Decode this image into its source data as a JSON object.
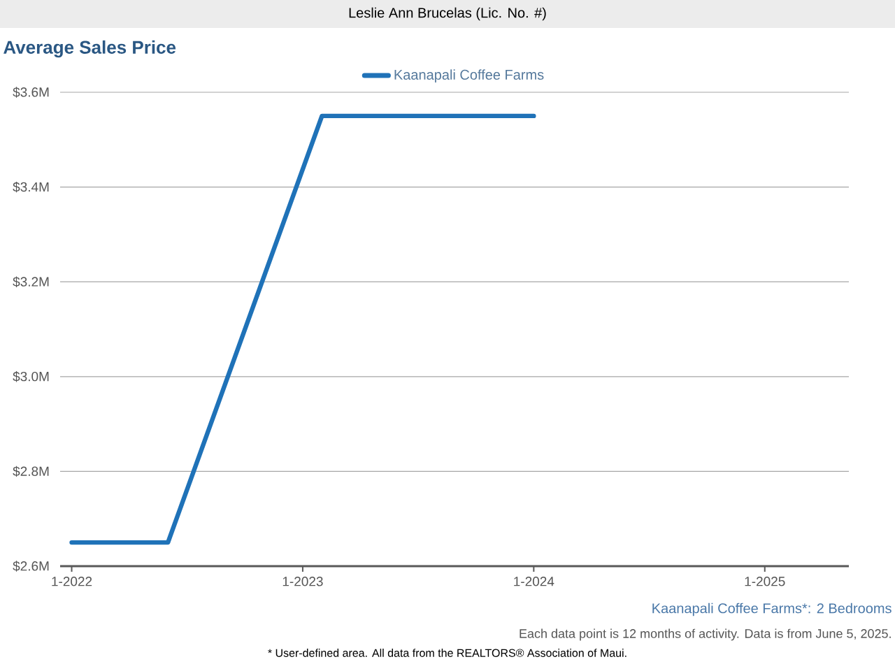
{
  "chart_data": {
    "type": "line",
    "title": "Average Sales Price",
    "subtitle": "Kaanapali Coffee Farms*: 2 Bedrooms",
    "annotations": [
      "Leslie Ann Brucelas (Lic. No. #)",
      "Each data point is 12 months of activity. Data is from June 5, 2025.",
      "* User-defined area. All data from the REALTORS® Association of Maui."
    ],
    "series": [
      {
        "name": "Kaanapali Coffee Farms",
        "color": "#1f72b8",
        "x": [
          "2022-01",
          "2022-06",
          "2023-02",
          "2024-01"
        ],
        "values": [
          2650000,
          2650000,
          3550000,
          3550000
        ]
      }
    ],
    "xlim": [
      "2021-12-13",
      "2025-05-12"
    ],
    "xticks": [
      {
        "value": "2022-01",
        "label": "1-2022"
      },
      {
        "value": "2023-01",
        "label": "1-2023"
      },
      {
        "value": "2024-01",
        "label": "1-2024"
      },
      {
        "value": "2025-01",
        "label": "1-2025"
      }
    ],
    "ylim": [
      2600000,
      3600000
    ],
    "yticks": [
      {
        "value": 2600000,
        "label": "$2.6M"
      },
      {
        "value": 2800000,
        "label": "$2.8M"
      },
      {
        "value": 3000000,
        "label": "$3.0M"
      },
      {
        "value": 3200000,
        "label": "$3.2M"
      },
      {
        "value": 3400000,
        "label": "$3.4M"
      },
      {
        "value": 3600000,
        "label": "$3.6M"
      }
    ],
    "grid": "y",
    "legend": "top",
    "marker": "none",
    "line_style": "solid"
  }
}
